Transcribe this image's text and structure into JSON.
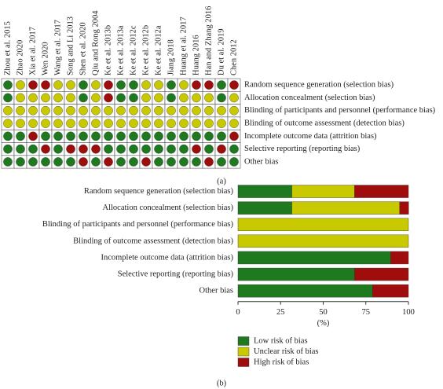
{
  "chart_data": [
    {
      "type": "grid",
      "caption": "(a)",
      "studies": [
        "Zhou et al. 2015",
        "Zhao 2020",
        "Xia et al. 2017",
        "Wen 2020",
        "Wang et al. 2017",
        "Song and Li 2013",
        "Shen et al. 2020",
        "Qiu and Rong 2004",
        "Ke et al. 2013b",
        "Ke et al. 2013a",
        "Ke et al. 2012c",
        "Ke et al. 2012b",
        "Ke et al. 2012a",
        "Jiang 2018",
        "Huang et al. 2017",
        "Huang 2016",
        "Han and Zhang 2016",
        "Du et al. 2019",
        "Chen 2012"
      ],
      "domains": [
        "Random sequence generation (selection bias)",
        "Allocation concealment (selection bias)",
        "Blinding of participants and personnel (performance bias)",
        "Blinding of outcome assessment (detection bias)",
        "Incomplete outcome data (attrition bias)",
        "Selective reporting (reporting bias)",
        "Other bias"
      ],
      "colors": {
        "low": "#1f7a1f",
        "unclear": "#c9c900",
        "high": "#a00d0d"
      },
      "judgments": [
        [
          "low",
          "unclear",
          "high",
          "high",
          "unclear",
          "unclear",
          "low",
          "unclear",
          "high",
          "low",
          "low",
          "unclear",
          "unclear",
          "low",
          "unclear",
          "high",
          "high",
          "low",
          "high"
        ],
        [
          "low",
          "unclear",
          "unclear",
          "unclear",
          "unclear",
          "unclear",
          "low",
          "unclear",
          "high",
          "low",
          "low",
          "unclear",
          "unclear",
          "low",
          "unclear",
          "unclear",
          "unclear",
          "low",
          "unclear"
        ],
        [
          "unclear",
          "unclear",
          "unclear",
          "unclear",
          "unclear",
          "unclear",
          "unclear",
          "unclear",
          "unclear",
          "unclear",
          "unclear",
          "unclear",
          "unclear",
          "unclear",
          "unclear",
          "unclear",
          "unclear",
          "unclear",
          "unclear"
        ],
        [
          "unclear",
          "unclear",
          "unclear",
          "unclear",
          "unclear",
          "unclear",
          "unclear",
          "unclear",
          "unclear",
          "unclear",
          "unclear",
          "unclear",
          "unclear",
          "unclear",
          "unclear",
          "unclear",
          "unclear",
          "unclear",
          "unclear"
        ],
        [
          "low",
          "low",
          "high",
          "low",
          "low",
          "low",
          "low",
          "low",
          "low",
          "low",
          "low",
          "low",
          "low",
          "low",
          "low",
          "low",
          "low",
          "low",
          "high"
        ],
        [
          "low",
          "low",
          "low",
          "high",
          "low",
          "high",
          "high",
          "high",
          "low",
          "low",
          "low",
          "low",
          "low",
          "low",
          "low",
          "high",
          "low",
          "high",
          "low"
        ],
        [
          "low",
          "low",
          "low",
          "low",
          "low",
          "low",
          "high",
          "low",
          "high",
          "low",
          "low",
          "high",
          "low",
          "low",
          "low",
          "low",
          "high",
          "low",
          "low"
        ]
      ]
    },
    {
      "type": "bar",
      "caption": "(b)",
      "xlabel": "(%)",
      "categories": [
        "Random sequence generation (selection bias)",
        "Allocation concealment (selection bias)",
        "Blinding of participants and personnel (performance bias)",
        "Blinding of outcome assessment (detection bias)",
        "Incomplete outcome data (attrition bias)",
        "Selective reporting (reporting bias)",
        "Other bias"
      ],
      "series": [
        {
          "name": "Low risk of bias",
          "color": "#1f7a1f",
          "values": [
            31.6,
            31.6,
            0,
            0,
            89.5,
            68.4,
            78.9
          ]
        },
        {
          "name": "Unclear risk of bias",
          "color": "#c9c900",
          "values": [
            36.8,
            63.2,
            100,
            100,
            0,
            0,
            0
          ]
        },
        {
          "name": "High risk of bias",
          "color": "#a00d0d",
          "values": [
            31.6,
            5.3,
            0,
            0,
            10.5,
            31.6,
            21.1
          ]
        }
      ],
      "xlim": [
        0,
        100
      ],
      "xticks": [
        0,
        25,
        50,
        75,
        100
      ]
    }
  ]
}
